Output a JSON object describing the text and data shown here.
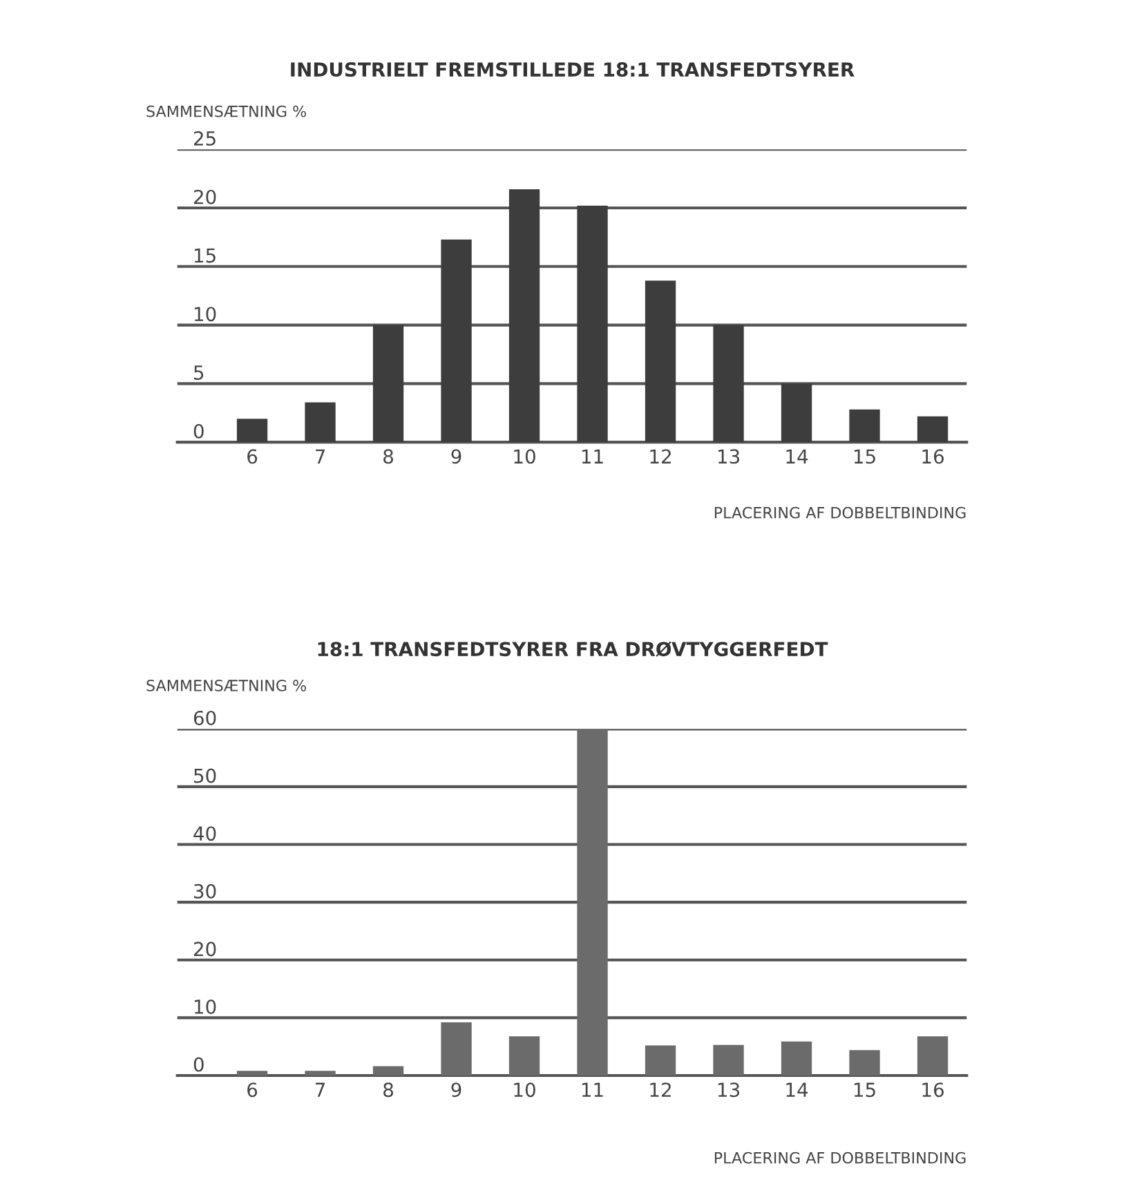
{
  "chart_data": [
    {
      "type": "bar",
      "title": "INDUSTRIELT FREMSTILLEDE 18:1 TRANSFEDTSYRER",
      "ylabel": "SAMMENSÆTNING %",
      "xlabel": "PLACERING AF DOBBELTBINDING",
      "categories": [
        "6",
        "7",
        "8",
        "9",
        "10",
        "11",
        "12",
        "13",
        "14",
        "15",
        "16"
      ],
      "values": [
        2.0,
        3.4,
        10,
        17.3,
        21.6,
        20.2,
        13.8,
        10,
        5.0,
        2.8,
        2.2
      ],
      "color": "#3d3d3d",
      "ylim": [
        0,
        25
      ],
      "yticks": [
        0,
        5,
        10,
        15,
        20,
        25
      ],
      "grid": "y"
    },
    {
      "type": "bar",
      "title": "18:1 TRANSFEDTSYRER FRA DRØVTYGGERFEDT",
      "ylabel": "SAMMENSÆTNING %",
      "xlabel": "PLACERING AF DOBBELTBINDING",
      "categories": [
        "6",
        "7",
        "8",
        "9",
        "10",
        "11",
        "12",
        "13",
        "14",
        "15",
        "16"
      ],
      "values": [
        0.8,
        0.8,
        1.6,
        9.2,
        6.8,
        60,
        5.2,
        5.3,
        5.9,
        4.4,
        6.8
      ],
      "color": "#6b6b6b",
      "ylim": [
        0,
        60
      ],
      "yticks": [
        0,
        10,
        20,
        30,
        40,
        50,
        60
      ],
      "grid": "y"
    }
  ]
}
